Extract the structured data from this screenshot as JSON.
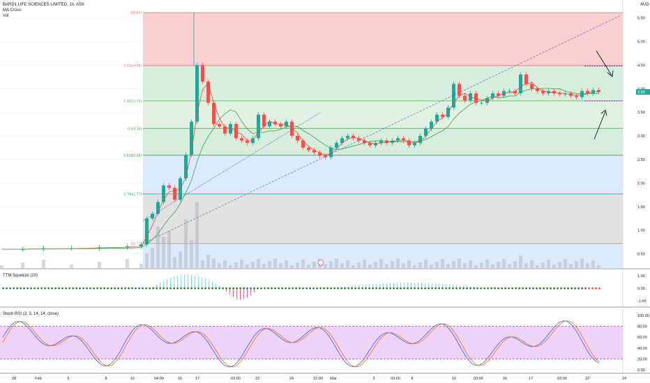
{
  "header": {
    "title": "BARD1 LIFE SCIENCES LIMITED, 1h, ASX",
    "indicator_1": "MA Cross",
    "indicator_2": "Vol",
    "currency": "AUD"
  },
  "panels": {
    "squeeze_label": "TTM Squeeze (20)",
    "stoch_label": "Stoch RSI (3, 3, 14, 14, close)"
  },
  "colors": {
    "up": "#26a69a",
    "down": "#ef5350",
    "ma_fast": "#f44336",
    "ma_slow": "#43a047",
    "fib_red": "#f8c7c7",
    "fib_green": "#cfead8",
    "fib_green2": "#dcefdc",
    "fib_blue": "#d4e6fb",
    "fib_gray": "#dcdcdc",
    "stoch_band": "#e8c8f8",
    "stoch_k": "#2962ff",
    "stoch_d": "#ff6d00",
    "price_tag": "#26a69a",
    "purple": "#9c27b0"
  },
  "chart_data": [
    {
      "type": "candlestick",
      "title": "BARD1 LIFE SCIENCES LIMITED, 1h, ASX",
      "ylabel": "AUD",
      "ylim": [
        0.2,
        5.7
      ],
      "y_ticks": [
        "5.50",
        "5.00",
        "4.50",
        "4.00",
        "3.50",
        "3.00",
        "2.50",
        "2.00",
        "1.50",
        "1.00",
        "0.50"
      ],
      "x_ticks": [
        "28",
        "Feb",
        "5",
        "8",
        "10",
        "04:00",
        "15",
        "17",
        "03:00",
        "22",
        "24",
        "22:00",
        "Mar",
        "3",
        "03:00",
        "8",
        "10",
        "03:00",
        "15",
        "17",
        "03:00",
        "22",
        "24"
      ],
      "last_price": "3.93",
      "fib_levels": [
        {
          "label": "0(5.61)",
          "ratio": 0,
          "price": 5.61
        },
        {
          "label": "0.236(4.49)",
          "ratio": 0.236,
          "price": 4.49
        },
        {
          "label": "0.382(3.74)",
          "ratio": 0.382,
          "price": 3.74
        },
        {
          "label": "0.5(3.16)",
          "ratio": 0.5,
          "price": 3.16
        },
        {
          "label": "0.618(2.59)",
          "ratio": 0.618,
          "price": 2.59
        },
        {
          "label": "0.786(1.77)",
          "ratio": 0.786,
          "price": 1.77
        },
        {
          "label": "1(0.72)",
          "ratio": 1,
          "price": 0.72
        }
      ],
      "price_path": [
        [
          0,
          0.6
        ],
        [
          30,
          0.6
        ],
        [
          60,
          0.62
        ],
        [
          100,
          0.62
        ],
        [
          140,
          0.64
        ],
        [
          180,
          0.66
        ],
        [
          200,
          0.7
        ],
        [
          208,
          1.25
        ],
        [
          216,
          1.35
        ],
        [
          224,
          1.6
        ],
        [
          232,
          1.95
        ],
        [
          240,
          1.9
        ],
        [
          248,
          1.65
        ],
        [
          256,
          2.1
        ],
        [
          264,
          2.6
        ],
        [
          272,
          3.3
        ],
        [
          280,
          4.5
        ],
        [
          288,
          4.15
        ],
        [
          296,
          3.7
        ],
        [
          304,
          3.25
        ],
        [
          312,
          3.2
        ],
        [
          320,
          3.05
        ],
        [
          328,
          3.25
        ],
        [
          336,
          2.95
        ],
        [
          344,
          2.9
        ],
        [
          352,
          2.85
        ],
        [
          360,
          2.95
        ],
        [
          368,
          3.45
        ],
        [
          376,
          3.2
        ],
        [
          384,
          3.3
        ],
        [
          392,
          3.25
        ],
        [
          400,
          3.2
        ],
        [
          408,
          3.3
        ],
        [
          416,
          3.0
        ],
        [
          424,
          2.9
        ],
        [
          432,
          2.75
        ],
        [
          440,
          2.7
        ],
        [
          448,
          2.65
        ],
        [
          456,
          2.58
        ],
        [
          464,
          2.55
        ],
        [
          472,
          2.75
        ],
        [
          480,
          2.85
        ],
        [
          488,
          2.95
        ],
        [
          496,
          3.0
        ],
        [
          504,
          2.95
        ],
        [
          512,
          2.9
        ],
        [
          520,
          2.85
        ],
        [
          528,
          2.8
        ],
        [
          536,
          2.85
        ],
        [
          544,
          2.9
        ],
        [
          552,
          2.85
        ],
        [
          560,
          2.9
        ],
        [
          568,
          2.95
        ],
        [
          576,
          2.9
        ],
        [
          584,
          2.8
        ],
        [
          592,
          2.85
        ],
        [
          600,
          3.0
        ],
        [
          608,
          3.15
        ],
        [
          616,
          3.3
        ],
        [
          624,
          3.45
        ],
        [
          632,
          3.4
        ],
        [
          640,
          3.6
        ],
        [
          648,
          4.1
        ],
        [
          656,
          3.85
        ],
        [
          664,
          3.75
        ],
        [
          672,
          3.9
        ],
        [
          680,
          3.7
        ],
        [
          688,
          3.7
        ],
        [
          696,
          3.8
        ],
        [
          704,
          3.9
        ],
        [
          712,
          3.85
        ],
        [
          720,
          3.95
        ],
        [
          728,
          3.95
        ],
        [
          736,
          3.9
        ],
        [
          744,
          4.3
        ],
        [
          752,
          4.1
        ],
        [
          760,
          4.0
        ],
        [
          768,
          3.95
        ],
        [
          776,
          3.9
        ],
        [
          784,
          3.95
        ],
        [
          792,
          3.9
        ],
        [
          800,
          3.88
        ],
        [
          808,
          3.9
        ],
        [
          816,
          3.85
        ],
        [
          824,
          3.82
        ],
        [
          832,
          3.95
        ],
        [
          840,
          3.9
        ],
        [
          848,
          3.97
        ],
        [
          856,
          3.93
        ]
      ]
    },
    {
      "type": "bar",
      "title": "TTM Squeeze (20)",
      "y_ticks": [
        "1.00",
        "0.00",
        "-1.00"
      ],
      "ylim": [
        -1.3,
        1.3
      ]
    },
    {
      "type": "line",
      "title": "Stoch RSI (3, 3, 14, 14, close)",
      "y_ticks": [
        "100.00",
        "80.00",
        "60.00",
        "40.00",
        "20.00",
        "0.00"
      ],
      "ylim": [
        0,
        100
      ],
      "band": [
        20,
        80
      ]
    }
  ]
}
